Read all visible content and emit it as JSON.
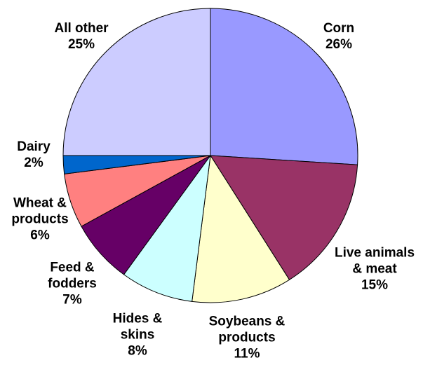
{
  "chart_data": {
    "type": "pie",
    "slices": [
      {
        "label": [
          "Corn"
        ],
        "pct_text": "26%",
        "value": 26,
        "color": "#9999ff"
      },
      {
        "label": [
          "Live animals",
          "& meat"
        ],
        "pct_text": "15%",
        "value": 15,
        "color": "#993366"
      },
      {
        "label": [
          "Soybeans &",
          "products"
        ],
        "pct_text": "11%",
        "value": 11,
        "color": "#ffffcc"
      },
      {
        "label": [
          "Hides &",
          "skins"
        ],
        "pct_text": "8%",
        "value": 8,
        "color": "#ccffff"
      },
      {
        "label": [
          "Feed &",
          "fodders"
        ],
        "pct_text": "7%",
        "value": 7,
        "color": "#660066"
      },
      {
        "label": [
          "Wheat &",
          "products"
        ],
        "pct_text": "6%",
        "value": 6,
        "color": "#ff8080"
      },
      {
        "label": [
          "Dairy"
        ],
        "pct_text": "2%",
        "value": 2,
        "color": "#0066cc"
      },
      {
        "label": [
          "All other"
        ],
        "pct_text": "25%",
        "value": 25,
        "color": "#ccccff"
      }
    ]
  }
}
